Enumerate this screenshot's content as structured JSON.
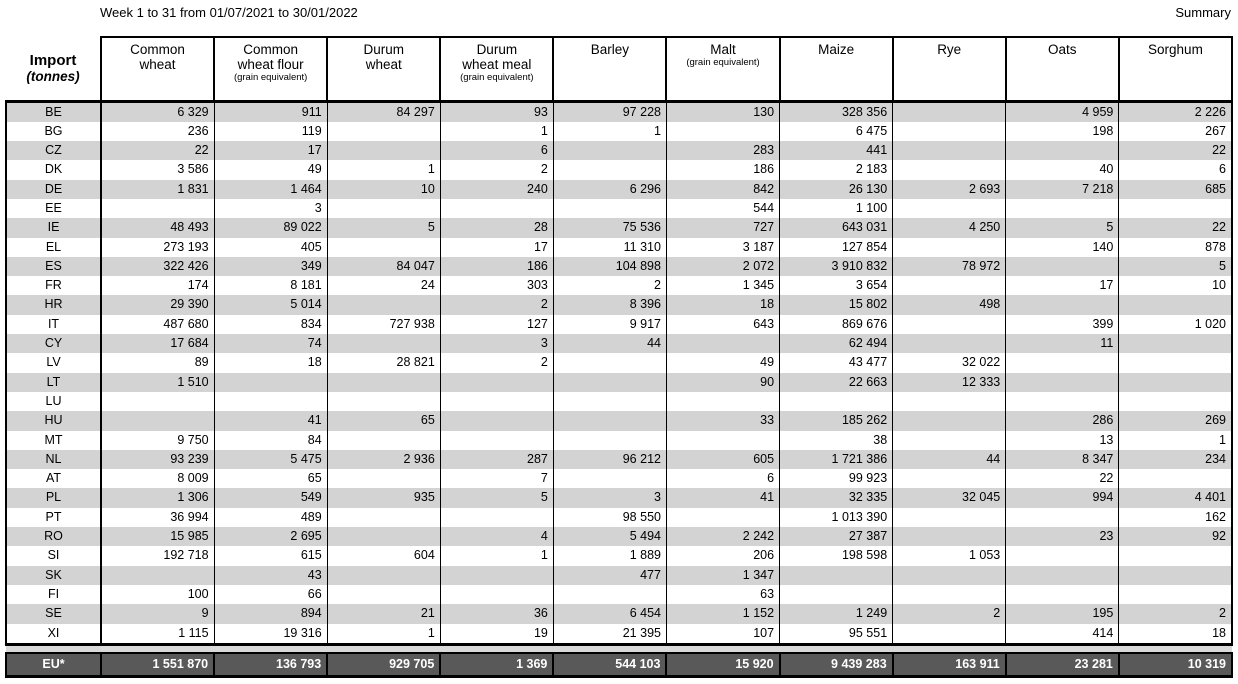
{
  "header": {
    "title": "Week 1 to 31 from 01/07/2021 to 30/01/2022",
    "summary": "Summary"
  },
  "colors": {
    "row_stripe": "#d3d3d3",
    "spacer_band": "#d9d9d9",
    "total_bg": "#595959",
    "total_fg": "#ffffff",
    "border": "#000000"
  },
  "table": {
    "corner": {
      "title": "Import",
      "unit": "(tonnes)"
    },
    "columns": [
      {
        "lines": [
          "Common",
          "wheat"
        ],
        "sublabel": ""
      },
      {
        "lines": [
          "Common",
          "wheat flour"
        ],
        "sublabel": "(grain equivalent)"
      },
      {
        "lines": [
          "Durum",
          "wheat"
        ],
        "sublabel": ""
      },
      {
        "lines": [
          "Durum",
          "wheat meal"
        ],
        "sublabel": "(grain equivalent)"
      },
      {
        "lines": [
          "Barley"
        ],
        "sublabel": ""
      },
      {
        "lines": [
          "Malt"
        ],
        "sublabel": "(grain equivalent)"
      },
      {
        "lines": [
          "Maize"
        ],
        "sublabel": ""
      },
      {
        "lines": [
          "Rye"
        ],
        "sublabel": ""
      },
      {
        "lines": [
          "Oats"
        ],
        "sublabel": ""
      },
      {
        "lines": [
          "Sorghum"
        ],
        "sublabel": ""
      }
    ],
    "rows": [
      {
        "code": "BE",
        "values": [
          "6 329",
          "911",
          "84 297",
          "93",
          "97 228",
          "130",
          "328 356",
          "",
          "4 959",
          "2 226"
        ]
      },
      {
        "code": "BG",
        "values": [
          "236",
          "119",
          "",
          "1",
          "1",
          "",
          "6 475",
          "",
          "198",
          "267"
        ]
      },
      {
        "code": "CZ",
        "values": [
          "22",
          "17",
          "",
          "6",
          "",
          "283",
          "441",
          "",
          "",
          "22"
        ]
      },
      {
        "code": "DK",
        "values": [
          "3 586",
          "49",
          "1",
          "2",
          "",
          "186",
          "2 183",
          "",
          "40",
          "6"
        ]
      },
      {
        "code": "DE",
        "values": [
          "1 831",
          "1 464",
          "10",
          "240",
          "6 296",
          "842",
          "26 130",
          "2 693",
          "7 218",
          "685"
        ]
      },
      {
        "code": "EE",
        "values": [
          "",
          "3",
          "",
          "",
          "",
          "544",
          "1 100",
          "",
          "",
          ""
        ]
      },
      {
        "code": "IE",
        "values": [
          "48 493",
          "89 022",
          "5",
          "28",
          "75 536",
          "727",
          "643 031",
          "4 250",
          "5",
          "22"
        ]
      },
      {
        "code": "EL",
        "values": [
          "273 193",
          "405",
          "",
          "17",
          "11 310",
          "3 187",
          "127 854",
          "",
          "140",
          "878"
        ]
      },
      {
        "code": "ES",
        "values": [
          "322 426",
          "349",
          "84 047",
          "186",
          "104 898",
          "2 072",
          "3 910 832",
          "78 972",
          "",
          "5"
        ]
      },
      {
        "code": "FR",
        "values": [
          "174",
          "8 181",
          "24",
          "303",
          "2",
          "1 345",
          "3 654",
          "",
          "17",
          "10"
        ]
      },
      {
        "code": "HR",
        "values": [
          "29 390",
          "5 014",
          "",
          "2",
          "8 396",
          "18",
          "15 802",
          "498",
          "",
          ""
        ]
      },
      {
        "code": "IT",
        "values": [
          "487 680",
          "834",
          "727 938",
          "127",
          "9 917",
          "643",
          "869 676",
          "",
          "399",
          "1 020"
        ]
      },
      {
        "code": "CY",
        "values": [
          "17 684",
          "74",
          "",
          "3",
          "44",
          "",
          "62 494",
          "",
          "11",
          ""
        ]
      },
      {
        "code": "LV",
        "values": [
          "89",
          "18",
          "28 821",
          "2",
          "",
          "49",
          "43 477",
          "32 022",
          "",
          ""
        ]
      },
      {
        "code": "LT",
        "values": [
          "1 510",
          "",
          "",
          "",
          "",
          "90",
          "22 663",
          "12 333",
          "",
          ""
        ]
      },
      {
        "code": "LU",
        "values": [
          "",
          "",
          "",
          "",
          "",
          "",
          "",
          "",
          "",
          ""
        ]
      },
      {
        "code": "HU",
        "values": [
          "",
          "41",
          "65",
          "",
          "",
          "33",
          "185 262",
          "",
          "286",
          "269"
        ]
      },
      {
        "code": "MT",
        "values": [
          "9 750",
          "84",
          "",
          "",
          "",
          "",
          "38",
          "",
          "13",
          "1"
        ]
      },
      {
        "code": "NL",
        "values": [
          "93 239",
          "5 475",
          "2 936",
          "287",
          "96 212",
          "605",
          "1 721 386",
          "44",
          "8 347",
          "234"
        ]
      },
      {
        "code": "AT",
        "values": [
          "8 009",
          "65",
          "",
          "7",
          "",
          "6",
          "99 923",
          "",
          "22",
          ""
        ]
      },
      {
        "code": "PL",
        "values": [
          "1 306",
          "549",
          "935",
          "5",
          "3",
          "41",
          "32 335",
          "32 045",
          "994",
          "4 401"
        ]
      },
      {
        "code": "PT",
        "values": [
          "36 994",
          "489",
          "",
          "",
          "98 550",
          "",
          "1 013 390",
          "",
          "",
          "162"
        ]
      },
      {
        "code": "RO",
        "values": [
          "15 985",
          "2 695",
          "",
          "4",
          "5 494",
          "2 242",
          "27 387",
          "",
          "23",
          "92"
        ]
      },
      {
        "code": "SI",
        "values": [
          "192 718",
          "615",
          "604",
          "1",
          "1 889",
          "206",
          "198 598",
          "1 053",
          "",
          ""
        ]
      },
      {
        "code": "SK",
        "values": [
          "",
          "43",
          "",
          "",
          "477",
          "1 347",
          "",
          "",
          "",
          ""
        ]
      },
      {
        "code": "FI",
        "values": [
          "100",
          "66",
          "",
          "",
          "",
          "63",
          "",
          "",
          "",
          ""
        ]
      },
      {
        "code": "SE",
        "values": [
          "9",
          "894",
          "21",
          "36",
          "6 454",
          "1 152",
          "1 249",
          "2",
          "195",
          "2"
        ]
      },
      {
        "code": "XI",
        "values": [
          "1 115",
          "19 316",
          "1",
          "19",
          "21 395",
          "107",
          "95 551",
          "",
          "414",
          "18"
        ]
      }
    ],
    "total": {
      "code": "EU*",
      "values": [
        "1 551 870",
        "136 793",
        "929 705",
        "1 369",
        "544 103",
        "15 920",
        "9 439 283",
        "163 911",
        "23 281",
        "10 319"
      ]
    }
  }
}
